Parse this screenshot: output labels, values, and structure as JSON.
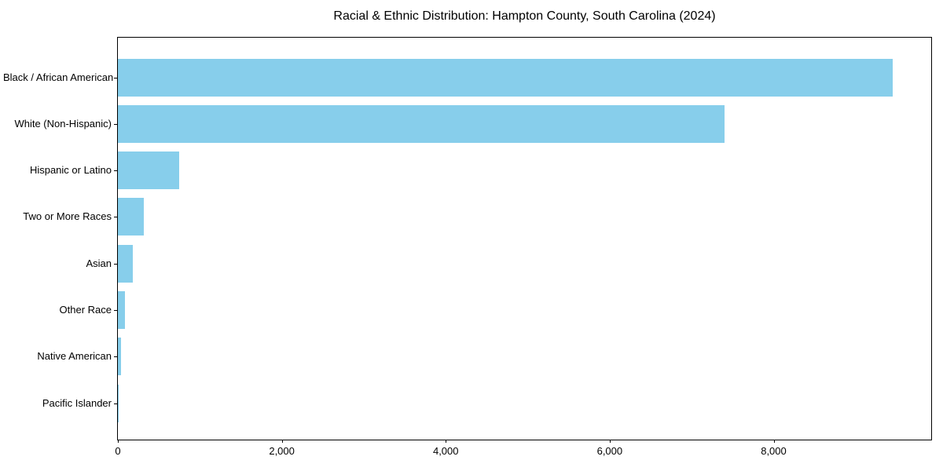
{
  "chart_data": {
    "type": "bar",
    "orientation": "horizontal",
    "title": "Racial & Ethnic Distribution: Hampton County, South Carolina (2024)",
    "categories": [
      "Black / African American",
      "White (Non-Hispanic)",
      "Hispanic or Latino",
      "Two or More Races",
      "Asian",
      "Other Race",
      "Native American",
      "Pacific Islander"
    ],
    "values": [
      9450,
      7400,
      750,
      320,
      180,
      90,
      40,
      5
    ],
    "xlabel": "",
    "ylabel": "",
    "xlim": [
      0,
      9922
    ],
    "x_ticks": [
      0,
      2000,
      4000,
      6000,
      8000
    ],
    "x_tick_labels": [
      "0",
      "2,000",
      "4,000",
      "6,000",
      "8,000"
    ],
    "bar_color": "#87CEEB",
    "axis_color": "#000000",
    "background_color": "#ffffff",
    "grid": false,
    "legend": null
  }
}
